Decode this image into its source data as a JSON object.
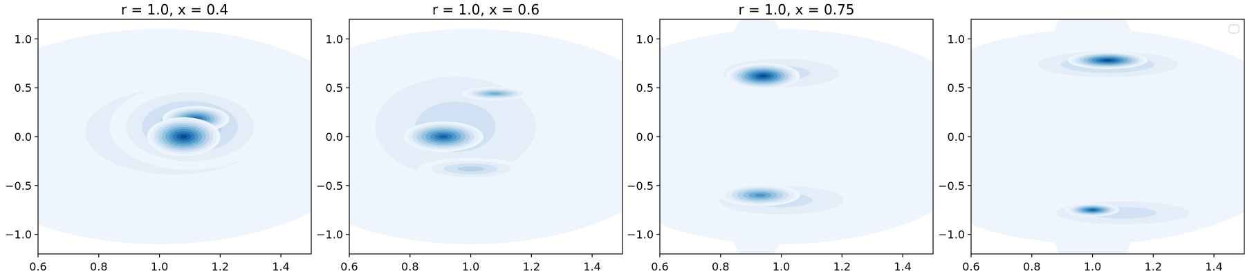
{
  "figure": {
    "colors": [
      "#eef5fc",
      "#e3eef9",
      "#cfe1f2",
      "#b5d4e9",
      "#93c3df",
      "#6daed5",
      "#4b97c9",
      "#2f7ebc",
      "#1864aa",
      "#0a4a90"
    ],
    "legend": {
      "placement": "upper right",
      "entries": []
    }
  },
  "chart_data": [
    {
      "type": "contour",
      "title": "r = 1.0, x = 0.4",
      "xlim": [
        0.6,
        1.5
      ],
      "ylim": [
        -1.2,
        1.2
      ],
      "xticks": [
        0.6,
        0.8,
        1.0,
        1.2,
        1.4
      ],
      "xtick_labels": [
        "0.6",
        "0.8",
        "1.0",
        "1.2",
        "1.4"
      ],
      "yticks": [
        1.0,
        0.5,
        0.0,
        -0.5,
        -1.0
      ],
      "ytick_labels": [
        "1.0",
        "0.5",
        "0.0",
        "−0.5",
        "−1.0"
      ],
      "background": [
        {
          "x": 1.0,
          "y": 0.0,
          "sx": 0.7,
          "sy": 1.1
        }
      ],
      "peaks": [
        {
          "x": 1.08,
          "y": 0.0,
          "sx": 0.055,
          "sy": 0.09,
          "level": 10
        },
        {
          "x": 1.12,
          "y": 0.18,
          "sx": 0.05,
          "sy": 0.06,
          "level": 9
        },
        {
          "x": 1.1,
          "y": 0.1,
          "sx": 0.12,
          "sy": 0.2,
          "level": 5
        },
        {
          "x": 1.05,
          "y": 0.05,
          "sx": 0.2,
          "sy": 0.3,
          "level": 3
        }
      ]
    },
    {
      "type": "contour",
      "title": "r = 1.0, x = 0.6",
      "xlim": [
        0.6,
        1.5
      ],
      "ylim": [
        -1.2,
        1.2
      ],
      "xticks": [
        0.6,
        0.8,
        1.0,
        1.2,
        1.4
      ],
      "xtick_labels": [
        "0.6",
        "0.8",
        "1.0",
        "1.2",
        "1.4"
      ],
      "yticks": [
        1.0,
        0.5,
        0.0,
        -0.5,
        -1.0
      ],
      "ytick_labels": [
        "1.0",
        "0.5",
        "0.0",
        "−0.5",
        "−1.0"
      ],
      "background": [
        {
          "x": 1.0,
          "y": 0.0,
          "sx": 0.7,
          "sy": 1.1
        }
      ],
      "peaks": [
        {
          "x": 0.91,
          "y": 0.0,
          "sx": 0.06,
          "sy": 0.07,
          "level": 9
        },
        {
          "x": 1.08,
          "y": 0.44,
          "sx": 0.05,
          "sy": 0.03,
          "level": 6
        },
        {
          "x": 1.0,
          "y": -0.33,
          "sx": 0.08,
          "sy": 0.05,
          "level": 4
        },
        {
          "x": 0.95,
          "y": 0.1,
          "sx": 0.18,
          "sy": 0.35,
          "level": 3
        }
      ]
    },
    {
      "type": "contour",
      "title": "r = 1.0, x = 0.75",
      "xlim": [
        0.6,
        1.5
      ],
      "ylim": [
        -1.2,
        1.2
      ],
      "xticks": [
        0.6,
        0.8,
        1.0,
        1.2,
        1.4
      ],
      "xtick_labels": [
        "0.6",
        "0.8",
        "1.0",
        "1.2",
        "1.4"
      ],
      "yticks": [
        1.0,
        0.5,
        0.0,
        -0.5,
        -1.0
      ],
      "ytick_labels": [
        "1.0",
        "0.5",
        "0.0",
        "−0.5",
        "−1.0"
      ],
      "background": [
        {
          "x": 1.0,
          "y": 0.0,
          "sx": 0.7,
          "sy": 1.1
        }
      ],
      "peaks": [
        {
          "x": 0.94,
          "y": 0.62,
          "sx": 0.055,
          "sy": 0.06,
          "level": 10
        },
        {
          "x": 0.93,
          "y": -0.6,
          "sx": 0.06,
          "sy": 0.05,
          "level": 7
        },
        {
          "x": 1.0,
          "y": 0.65,
          "sx": 0.13,
          "sy": 0.1,
          "level": 3
        },
        {
          "x": 1.0,
          "y": -0.65,
          "sx": 0.14,
          "sy": 0.1,
          "level": 3
        },
        {
          "x": 0.92,
          "y": 0.0,
          "sx": 0.06,
          "sy": 0.6,
          "level": 1
        }
      ]
    },
    {
      "type": "contour",
      "title": "",
      "xlim": [
        0.6,
        1.5
      ],
      "ylim": [
        -1.2,
        1.2
      ],
      "xticks": [
        0.6,
        0.8,
        1.0,
        1.2,
        1.4
      ],
      "xtick_labels": [
        "0.6",
        "0.8",
        "1.0",
        "1.2",
        "1.4"
      ],
      "yticks": [
        1.0,
        0.5,
        0.0,
        -0.5,
        -1.0
      ],
      "ytick_labels": [
        "1.0",
        "0.5",
        "0.0",
        "−0.5",
        "−1.0"
      ],
      "background": [
        {
          "x": 1.0,
          "y": 0.0,
          "sx": 0.7,
          "sy": 1.1
        }
      ],
      "peaks": [
        {
          "x": 1.05,
          "y": 0.78,
          "sx": 0.06,
          "sy": 0.04,
          "level": 10
        },
        {
          "x": 1.0,
          "y": -0.75,
          "sx": 0.04,
          "sy": 0.03,
          "level": 9
        },
        {
          "x": 1.05,
          "y": 0.74,
          "sx": 0.14,
          "sy": 0.08,
          "level": 4
        },
        {
          "x": 1.1,
          "y": -0.78,
          "sx": 0.15,
          "sy": 0.08,
          "level": 3
        },
        {
          "x": 1.0,
          "y": 0.0,
          "sx": 0.08,
          "sy": 0.7,
          "level": 1
        }
      ]
    }
  ]
}
